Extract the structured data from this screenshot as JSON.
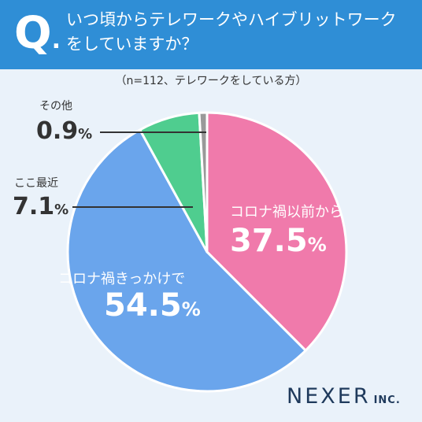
{
  "header": {
    "q_letter": "Q",
    "q_dot": ".",
    "question": "いつ頃からテレワークやハイブリットワークをしていますか？"
  },
  "note": "（n=112、テレワークをしている方）",
  "colors": {
    "header_bg": "#2f8ed6",
    "page_bg": "#eaf2fa",
    "before_corona": "#f07aab",
    "triggered_by_corona": "#6aa5ec",
    "recent": "#4fcd8f",
    "other": "#999999"
  },
  "chart_data": {
    "type": "pie",
    "title": "",
    "start_angle_deg": 0,
    "direction": "clockwise",
    "slices": [
      {
        "label": "コロナ禍以前から",
        "value": 37.5,
        "display": "37.5",
        "unit": "%",
        "color": "#f07aab"
      },
      {
        "label": "コロナ禍きっかけで",
        "value": 54.5,
        "display": "54.5",
        "unit": "%",
        "color": "#6aa5ec"
      },
      {
        "label": "ここ最近",
        "value": 7.1,
        "display": "7.1",
        "unit": "%",
        "color": "#4fcd8f"
      },
      {
        "label": "その他",
        "value": 0.9,
        "display": "0.9",
        "unit": "%",
        "color": "#999999"
      }
    ]
  },
  "logo": {
    "main": "NEXER",
    "sub": "INC."
  }
}
